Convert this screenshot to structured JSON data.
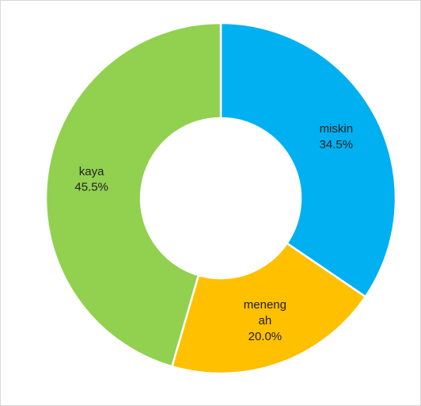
{
  "chart_data": {
    "type": "donut",
    "categories": [
      "miskin",
      "menengah",
      "kaya"
    ],
    "values": [
      34.5,
      20.0,
      45.5
    ],
    "value_labels": [
      "34.5%",
      "20.0%",
      "45.5%"
    ],
    "colors": [
      "#00b0f0",
      "#ffc000",
      "#92d050"
    ]
  }
}
